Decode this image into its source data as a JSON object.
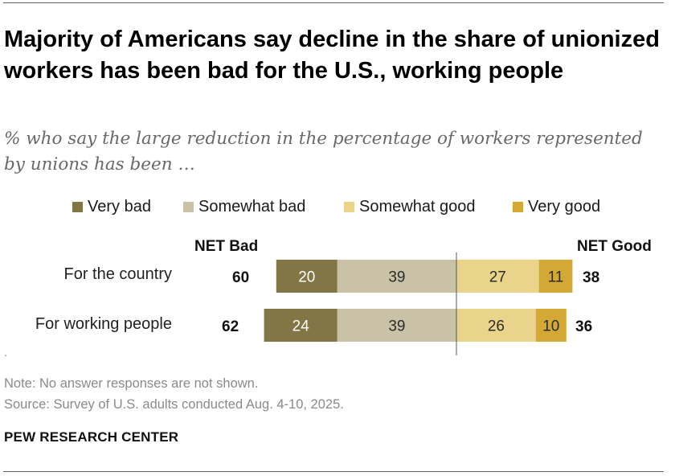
{
  "title": "Majority of Americans say decline in the share of unionized workers has been bad for the U.S., working people",
  "subtitle": "% who say the large reduction in the percentage of workers represented by unions has been …",
  "legend": [
    {
      "label": "Very bad",
      "color": "#827647"
    },
    {
      "label": "Somewhat bad",
      "color": "#c9c2a6"
    },
    {
      "label": "Somewhat good",
      "color": "#ead48c"
    },
    {
      "label": "Very good",
      "color": "#d3a835"
    }
  ],
  "net_headers": {
    "bad": "NET Bad",
    "good": "NET Good"
  },
  "chart_data": {
    "type": "bar",
    "orientation": "horizontal-diverging",
    "categories": [
      "For the country",
      "For working people"
    ],
    "series": [
      {
        "name": "Very bad",
        "values": [
          20,
          24
        ],
        "color": "#827647"
      },
      {
        "name": "Somewhat bad",
        "values": [
          39,
          39
        ],
        "color": "#c9c2a6"
      },
      {
        "name": "Somewhat good",
        "values": [
          27,
          26
        ],
        "color": "#ead48c"
      },
      {
        "name": "Very good",
        "values": [
          11,
          10
        ],
        "color": "#d3a835"
      }
    ],
    "net_bad": [
      60,
      62
    ],
    "net_good": [
      38,
      36
    ],
    "title": "Majority of Americans say decline in the share of unionized workers has been bad for the U.S., working people",
    "xlabel": "",
    "ylabel": ""
  },
  "rows": [
    {
      "label": "For the country",
      "net_bad": "60",
      "net_good": "38"
    },
    {
      "label": "For working people",
      "net_bad": "62",
      "net_good": "36"
    }
  ],
  "stray_mark": ".",
  "note": "Note: No answer responses are not shown.",
  "source": "Source: Survey of U.S. adults conducted Aug. 4-10, 2025.",
  "brand": "PEW RESEARCH CENTER"
}
